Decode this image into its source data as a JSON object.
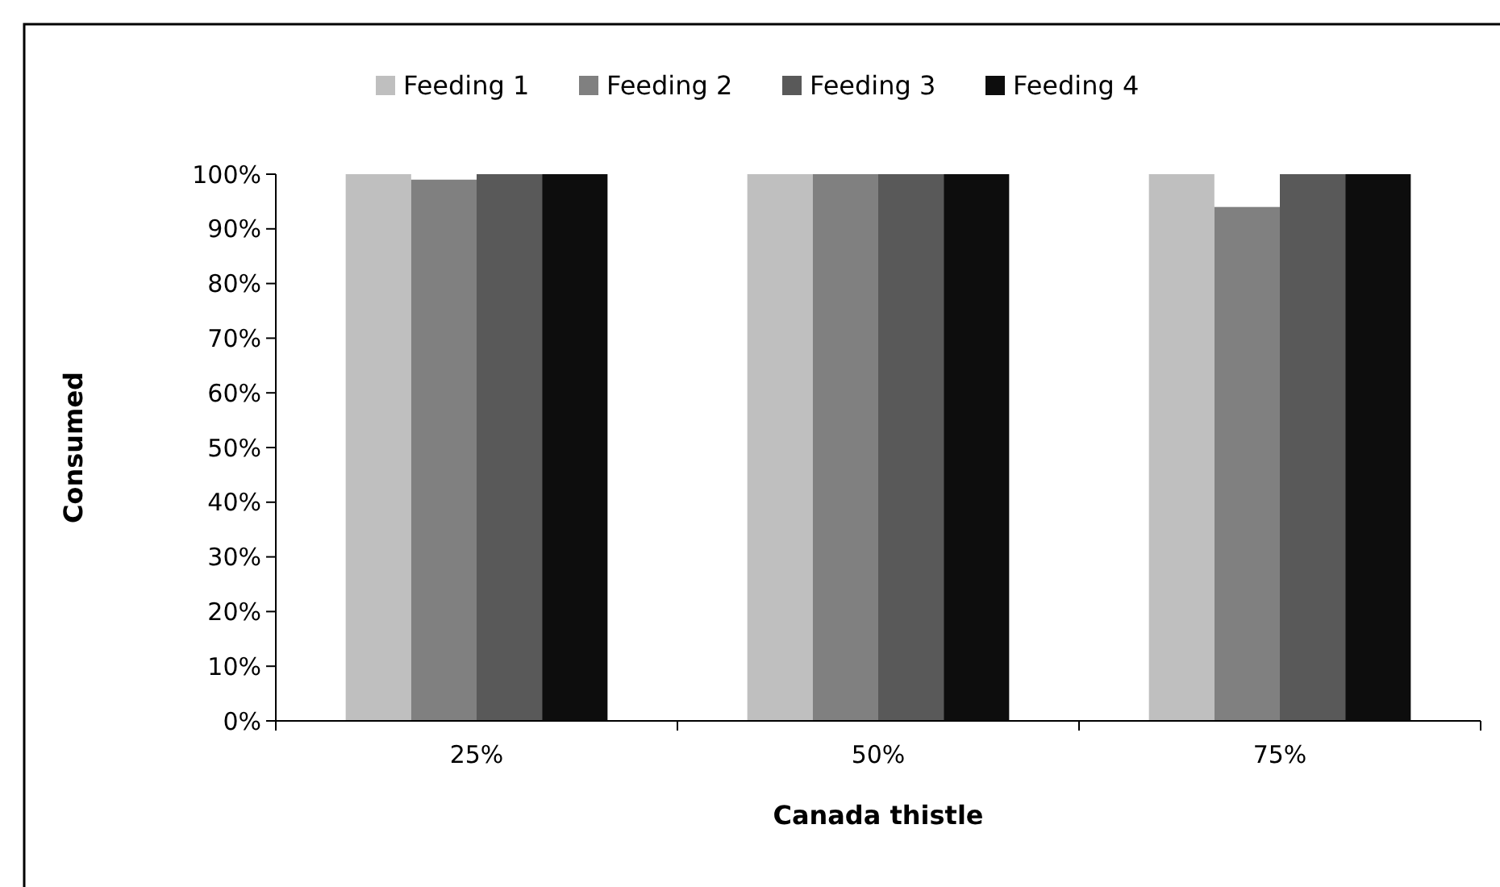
{
  "chart_data": {
    "type": "bar",
    "xlabel": "Canada thistle",
    "ylabel": "Consumed",
    "categories": [
      "25%",
      "50%",
      "75%"
    ],
    "series": [
      {
        "name": "Feeding 1",
        "color": "#bfbfbf",
        "values": [
          100,
          100,
          100
        ]
      },
      {
        "name": "Feeding 2",
        "color": "#808080",
        "values": [
          99,
          100,
          94
        ]
      },
      {
        "name": "Feeding 3",
        "color": "#595959",
        "values": [
          100,
          100,
          100
        ]
      },
      {
        "name": "Feeding 4",
        "color": "#0d0d0d",
        "values": [
          100,
          100,
          100
        ]
      }
    ],
    "ylim": [
      0,
      100
    ],
    "yticks": [
      {
        "value": 0,
        "label": "0%"
      },
      {
        "value": 10,
        "label": "10%"
      },
      {
        "value": 20,
        "label": "20%"
      },
      {
        "value": 30,
        "label": "30%"
      },
      {
        "value": 40,
        "label": "40%"
      },
      {
        "value": 50,
        "label": "50%"
      },
      {
        "value": 60,
        "label": "60%"
      },
      {
        "value": 70,
        "label": "70%"
      },
      {
        "value": 80,
        "label": "80%"
      },
      {
        "value": 90,
        "label": "90%"
      },
      {
        "value": 100,
        "label": "100%"
      }
    ],
    "grid": false,
    "legend": "top"
  }
}
